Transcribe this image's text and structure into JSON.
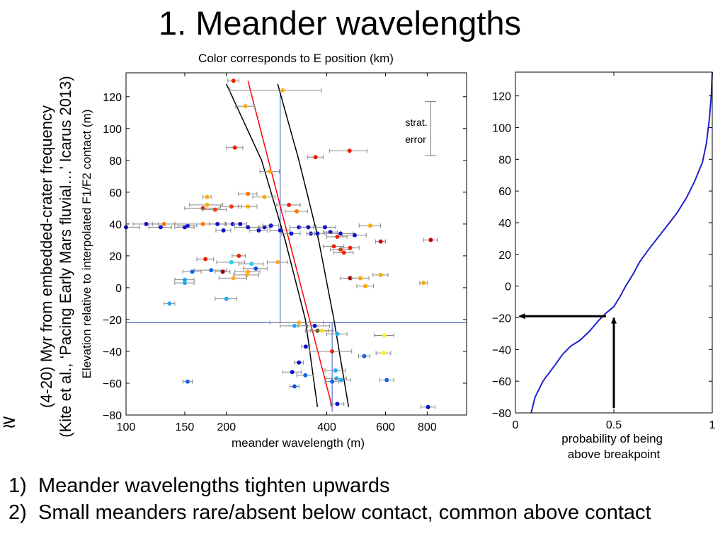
{
  "title": "1. Meander wavelengths",
  "side_label": {
    "line1": "(4-20) Myr from embedded-crater frequency",
    "line2": "(Kite et al., ‘Pacing Early Mars fluvial…’ Icarus 2013)",
    "approx_symbol": "≳"
  },
  "bullets": [
    {
      "num": "1)",
      "text": "Meander wavelengths tighten upwards"
    },
    {
      "num": "2)",
      "text": "Small meanders rare/absent below contact, common above contact"
    }
  ],
  "colors": {
    "fit_line": "#ff0000",
    "bounds_line": "#000000",
    "guide_line": "#3355cc",
    "cdf_line": "#2222cc",
    "error_bar": "#888888"
  },
  "chart_data": [
    {
      "type": "scatter",
      "title": "Color corresponds to E position (km)",
      "xlabel": "meander wavelength (m)",
      "ylabel": "Elevation relative to interpolated F1/F2 contact (m)",
      "xscale": "log",
      "xlim": [
        100,
        1050
      ],
      "ylim": [
        -80,
        135
      ],
      "xticks": [
        100,
        150,
        200,
        400,
        600,
        800
      ],
      "xtick_labels": [
        "100",
        "150",
        "200",
        "400",
        "600",
        "800"
      ],
      "yticks": [
        -80,
        -60,
        -40,
        -20,
        0,
        20,
        40,
        60,
        80,
        100,
        120
      ],
      "ytick_labels": [
        "−80",
        "−60",
        "−40",
        "−20",
        "0",
        "20",
        "40",
        "60",
        "80",
        "100",
        "120"
      ],
      "annotation": "strat. error",
      "strat_error_bar": {
        "x": 820,
        "y_low": 83,
        "y_high": 117
      },
      "horizontal_line_y": -22,
      "vertical_lines_x": [
        290,
        415
      ],
      "vertical_lines_ylim": [
        [
          -22,
          123
        ],
        [
          -78,
          -22
        ]
      ],
      "fit_line": {
        "x": [
          232,
          415
        ],
        "y": [
          130,
          -75
        ]
      },
      "bound_line_left": {
        "x": [
          200,
          255,
          300,
          345,
          375
        ],
        "y": [
          128,
          80,
          30,
          -20,
          -75
        ]
      },
      "bound_line_right": {
        "x": [
          285,
          330,
          378,
          420,
          465
        ],
        "y": [
          128,
          80,
          30,
          -20,
          -75
        ]
      },
      "points": [
        {
          "x": 210,
          "y": 130,
          "err": 8,
          "color": "#ee2200"
        },
        {
          "x": 295,
          "y": 124,
          "err": 90,
          "color": "#ffaa22"
        },
        {
          "x": 228,
          "y": 114,
          "err": 15,
          "color": "#ffaa00"
        },
        {
          "x": 212,
          "y": 88,
          "err": 12,
          "color": "#ee2200"
        },
        {
          "x": 468,
          "y": 86,
          "err": 60,
          "color": "#ee2200"
        },
        {
          "x": 370,
          "y": 82,
          "err": 20,
          "color": "#ee1100"
        },
        {
          "x": 270,
          "y": 73,
          "err": 18,
          "color": "#ffaa00"
        },
        {
          "x": 232,
          "y": 59,
          "err": 15,
          "color": "#ff7700"
        },
        {
          "x": 260,
          "y": 57,
          "err": 20,
          "color": "#ffaa00"
        },
        {
          "x": 175,
          "y": 57,
          "err": 5,
          "color": "#ffaa00"
        },
        {
          "x": 308,
          "y": 52,
          "err": 25,
          "color": "#ee2200"
        },
        {
          "x": 207,
          "y": 51,
          "err": 15,
          "color": "#ee4400"
        },
        {
          "x": 170,
          "y": 50,
          "err": 20,
          "color": "#ee2200"
        },
        {
          "x": 175,
          "y": 52,
          "err": 20,
          "color": "#ffaa00"
        },
        {
          "x": 232,
          "y": 51,
          "err": 15,
          "color": "#ffaa00"
        },
        {
          "x": 185,
          "y": 49,
          "err": 15,
          "color": "#ee4400"
        },
        {
          "x": 325,
          "y": 48,
          "err": 25,
          "color": "#ff7700"
        },
        {
          "x": 820,
          "y": 30,
          "err": 40,
          "color": "#cc0000"
        },
        {
          "x": 540,
          "y": 39,
          "err": 40,
          "color": "#ffaa00"
        },
        {
          "x": 580,
          "y": 29,
          "err": 20,
          "color": "#dd0000"
        },
        {
          "x": 100,
          "y": 38,
          "err": 10,
          "color": "#1111cc"
        },
        {
          "x": 115,
          "y": 40,
          "err": 10,
          "color": "#1111cc"
        },
        {
          "x": 127,
          "y": 38,
          "err": 10,
          "color": "#1111cc"
        },
        {
          "x": 130,
          "y": 40,
          "err": 10,
          "color": "#ff7700"
        },
        {
          "x": 150,
          "y": 38,
          "err": 10,
          "color": "#1111cc"
        },
        {
          "x": 153,
          "y": 39,
          "err": 10,
          "color": "#1111cc"
        },
        {
          "x": 170,
          "y": 40,
          "err": 30,
          "color": "#ff7700"
        },
        {
          "x": 188,
          "y": 40,
          "err": 10,
          "color": "#1111cc"
        },
        {
          "x": 196,
          "y": 36,
          "err": 10,
          "color": "#1111cc"
        },
        {
          "x": 209,
          "y": 40,
          "err": 10,
          "color": "#1111cc"
        },
        {
          "x": 220,
          "y": 40,
          "err": 10,
          "color": "#1111cc"
        },
        {
          "x": 232,
          "y": 38,
          "err": 20,
          "color": "#1111cc"
        },
        {
          "x": 250,
          "y": 36,
          "err": 15,
          "color": "#1111cc"
        },
        {
          "x": 260,
          "y": 38,
          "err": 10,
          "color": "#1111cc"
        },
        {
          "x": 272,
          "y": 39,
          "err": 15,
          "color": "#1111cc"
        },
        {
          "x": 290,
          "y": 36,
          "err": 20,
          "color": "#1111cc"
        },
        {
          "x": 313,
          "y": 34,
          "err": 20,
          "color": "#1111cc"
        },
        {
          "x": 330,
          "y": 38,
          "err": 20,
          "color": "#1111cc"
        },
        {
          "x": 352,
          "y": 38,
          "err": 20,
          "color": "#1111cc"
        },
        {
          "x": 358,
          "y": 34,
          "err": 10,
          "color": "#1111cc"
        },
        {
          "x": 375,
          "y": 34,
          "err": 20,
          "color": "#1111cc"
        },
        {
          "x": 395,
          "y": 38,
          "err": 30,
          "color": "#1111cc"
        },
        {
          "x": 410,
          "y": 35,
          "err": 20,
          "color": "#1111cc"
        },
        {
          "x": 440,
          "y": 34,
          "err": 40,
          "color": "#1111cc"
        },
        {
          "x": 485,
          "y": 33,
          "err": 40,
          "color": "#1111cc"
        },
        {
          "x": 420,
          "y": 26,
          "err": 30,
          "color": "#ee2200"
        },
        {
          "x": 440,
          "y": 24,
          "err": 30,
          "color": "#ee2200"
        },
        {
          "x": 450,
          "y": 22,
          "err": 30,
          "color": "#ee2200"
        },
        {
          "x": 470,
          "y": 25,
          "err": 30,
          "color": "#ee2200"
        },
        {
          "x": 430,
          "y": 32,
          "err": 30,
          "color": "#ee2200"
        },
        {
          "x": 218,
          "y": 20,
          "err": 10,
          "color": "#ee2200"
        },
        {
          "x": 173,
          "y": 18,
          "err": 10,
          "color": "#ee2200"
        },
        {
          "x": 207,
          "y": 16,
          "err": 20,
          "color": "#22ccee"
        },
        {
          "x": 238,
          "y": 15,
          "err": 20,
          "color": "#22ccee"
        },
        {
          "x": 245,
          "y": 12,
          "err": 20,
          "color": "#1155dd"
        },
        {
          "x": 285,
          "y": 16,
          "err": 20,
          "color": "#ffaa22"
        },
        {
          "x": 180,
          "y": 11,
          "err": 20,
          "color": "#1166ee"
        },
        {
          "x": 158,
          "y": 10,
          "err": 10,
          "color": "#1166ee"
        },
        {
          "x": 232,
          "y": 10,
          "err": 20,
          "color": "#ffaa22"
        },
        {
          "x": 195,
          "y": 10,
          "err": 10,
          "color": "#990000"
        },
        {
          "x": 230,
          "y": 8,
          "err": 20,
          "color": "#ffaa22"
        },
        {
          "x": 470,
          "y": 6,
          "err": 30,
          "color": "#990000"
        },
        {
          "x": 505,
          "y": 6,
          "err": 30,
          "color": "#ffaa00"
        },
        {
          "x": 522,
          "y": 1,
          "err": 30,
          "color": "#ffaa00"
        },
        {
          "x": 580,
          "y": 8,
          "err": 30,
          "color": "#ffaa00"
        },
        {
          "x": 780,
          "y": 3,
          "err": 20,
          "color": "#ffaa00"
        },
        {
          "x": 150,
          "y": 5,
          "err": 10,
          "color": "#22aaee"
        },
        {
          "x": 150,
          "y": 3,
          "err": 10,
          "color": "#22aaee"
        },
        {
          "x": 210,
          "y": 6,
          "err": 20,
          "color": "#ffaa22"
        },
        {
          "x": 135,
          "y": -10,
          "err": 5,
          "color": "#22aaee"
        },
        {
          "x": 200,
          "y": -7,
          "err": 15,
          "color": "#22aaee"
        },
        {
          "x": 330,
          "y": -22,
          "err": 60,
          "color": "#ffaa22"
        },
        {
          "x": 320,
          "y": -24,
          "err": 30,
          "color": "#22aaee"
        },
        {
          "x": 368,
          "y": -24,
          "err": 40,
          "color": "#1111cc"
        },
        {
          "x": 375,
          "y": -27,
          "err": 30,
          "color": "#555500"
        },
        {
          "x": 388,
          "y": -27,
          "err": 30,
          "color": "#ffdd00"
        },
        {
          "x": 430,
          "y": -29,
          "err": 30,
          "color": "#22aaee"
        },
        {
          "x": 595,
          "y": -30,
          "err": 40,
          "color": "#ffee22"
        },
        {
          "x": 592,
          "y": -41,
          "err": 30,
          "color": "#ffee22"
        },
        {
          "x": 346,
          "y": -37,
          "err": 10,
          "color": "#1111cc"
        },
        {
          "x": 415,
          "y": -40,
          "err": 60,
          "color": "#ee2200"
        },
        {
          "x": 518,
          "y": -43,
          "err": 20,
          "color": "#1166ee"
        },
        {
          "x": 330,
          "y": -47,
          "err": 10,
          "color": "#1111cc"
        },
        {
          "x": 315,
          "y": -53,
          "err": 20,
          "color": "#1111cc"
        },
        {
          "x": 345,
          "y": -55,
          "err": 20,
          "color": "#1166ee"
        },
        {
          "x": 425,
          "y": -52,
          "err": 30,
          "color": "#22aaee"
        },
        {
          "x": 428,
          "y": -57,
          "err": 30,
          "color": "#22aaee"
        },
        {
          "x": 442,
          "y": -58,
          "err": 30,
          "color": "#22aaee"
        },
        {
          "x": 415,
          "y": -59,
          "err": 20,
          "color": "#1166ee"
        },
        {
          "x": 605,
          "y": -58,
          "err": 30,
          "color": "#1166ee"
        },
        {
          "x": 153,
          "y": -59,
          "err": 5,
          "color": "#1166ee"
        },
        {
          "x": 320,
          "y": -62,
          "err": 10,
          "color": "#1155dd"
        },
        {
          "x": 430,
          "y": -73,
          "err": 20,
          "color": "#1111cc"
        },
        {
          "x": 805,
          "y": -75,
          "err": 40,
          "color": "#1111cc"
        }
      ]
    },
    {
      "type": "line",
      "title": "",
      "xlabel": "probability of being above breakpoint",
      "ylabel": "",
      "xlim": [
        0,
        1
      ],
      "ylim": [
        -80,
        135
      ],
      "xticks": [
        0,
        0.5,
        1
      ],
      "xtick_labels": [
        "0",
        "0.5",
        "1"
      ],
      "yticks": [
        -80,
        -60,
        -40,
        -20,
        0,
        20,
        40,
        60,
        80,
        100,
        120
      ],
      "ytick_labels": [
        "−80",
        "−60",
        "−40",
        "−20",
        "0",
        "20",
        "40",
        "60",
        "80",
        "100",
        "120"
      ],
      "series": [
        {
          "x": [
            0.08,
            0.1,
            0.14,
            0.2,
            0.24,
            0.28,
            0.33,
            0.38,
            0.42,
            0.46,
            0.5,
            0.53,
            0.56,
            0.6,
            0.63,
            0.67,
            0.72,
            0.77,
            0.82,
            0.87,
            0.91,
            0.95,
            0.97,
            0.985,
            0.995,
            1.0
          ],
          "y": [
            -80,
            -70,
            -60,
            -50,
            -43,
            -38,
            -34,
            -28,
            -22,
            -17,
            -13,
            -7,
            0,
            8,
            15,
            22,
            30,
            38,
            46,
            56,
            66,
            78,
            90,
            105,
            120,
            135
          ]
        }
      ],
      "arrows": [
        {
          "label": "",
          "from": [
            0.5,
            -77
          ],
          "to": [
            0.5,
            -20
          ]
        },
        {
          "label": "",
          "from": [
            0.46,
            -19
          ],
          "to": [
            0.02,
            -19
          ]
        }
      ]
    }
  ]
}
